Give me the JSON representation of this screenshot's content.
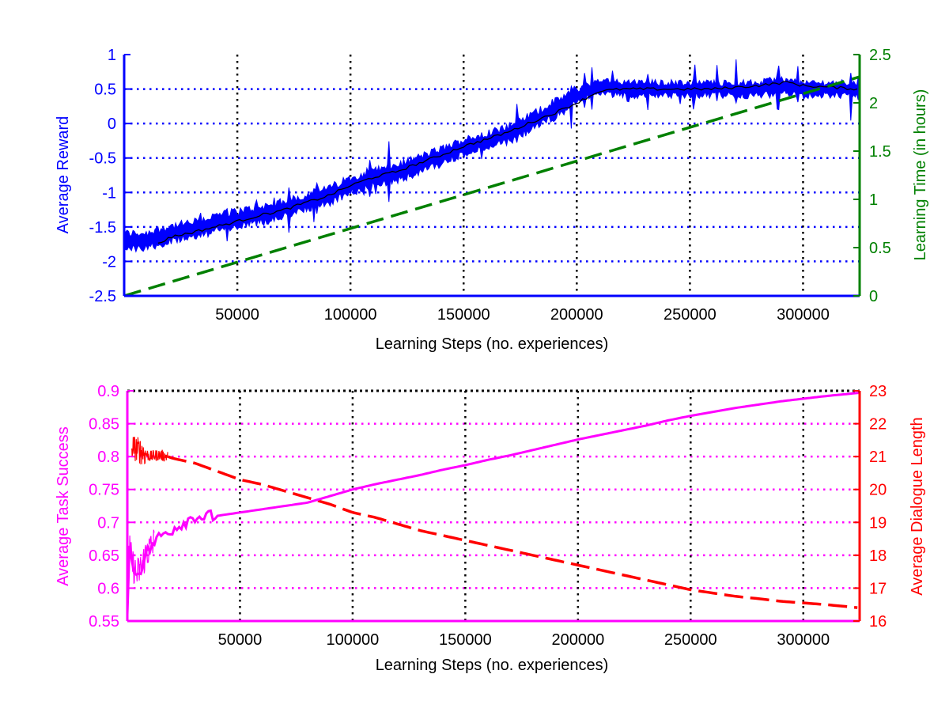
{
  "chart_data": [
    {
      "type": "line",
      "title": "",
      "xlabel": "Learning Steps (no. experiences)",
      "ylabel": "Average Reward",
      "y2label": "Learning Time (in hours)",
      "xlim": [
        0,
        325000
      ],
      "ylim": [
        -2.5,
        1
      ],
      "y2lim": [
        0,
        2.5
      ],
      "xticks": [
        50000,
        100000,
        150000,
        200000,
        250000,
        300000
      ],
      "yticks": [
        -2.5,
        -2,
        -1.5,
        -1,
        -0.5,
        0,
        0.5,
        1
      ],
      "y2ticks": [
        0,
        0.5,
        1,
        1.5,
        2,
        2.5
      ],
      "xtick_labels": [
        "50000",
        "100000",
        "150000",
        "200000",
        "250000",
        "300000"
      ],
      "ytick_labels": [
        "-2.5",
        "-2",
        "-1.5",
        "-1",
        "-0.5",
        "0",
        "0.5",
        "1"
      ],
      "y2tick_labels": [
        "0",
        "0.5",
        "1",
        "1.5",
        "2",
        "2.5"
      ],
      "grid": true,
      "colors": {
        "reward": "#0000ff",
        "mean": "#000000",
        "time": "#008000"
      },
      "series": [
        {
          "axis": "left",
          "style": "noisy-band",
          "x": [
            0,
            10000,
            20000,
            30000,
            40000,
            50000,
            60000,
            70000,
            80000,
            90000,
            100000,
            110000,
            120000,
            130000,
            140000,
            150000,
            160000,
            170000,
            180000,
            190000,
            200000,
            210000,
            220000,
            230000,
            240000,
            250000,
            260000,
            270000,
            280000,
            290000,
            300000,
            310000,
            325000
          ],
          "values": [
            -1.7,
            -1.7,
            -1.6,
            -1.55,
            -1.45,
            -1.38,
            -1.32,
            -1.25,
            -1.15,
            -1.05,
            -0.9,
            -0.78,
            -0.72,
            -0.6,
            -0.48,
            -0.35,
            -0.25,
            -0.15,
            0.02,
            0.2,
            0.4,
            0.55,
            0.5,
            0.5,
            0.5,
            0.5,
            0.5,
            0.5,
            0.5,
            0.55,
            0.5,
            0.5,
            0.5
          ]
        },
        {
          "axis": "left",
          "style": "line",
          "x": [
            15000,
            20000,
            30000,
            40000,
            50000,
            60000,
            70000,
            80000,
            90000,
            100000,
            110000,
            120000,
            130000,
            140000,
            150000,
            160000,
            170000,
            180000,
            190000,
            200000,
            210000,
            220000,
            240000,
            260000,
            280000,
            293000,
            300000,
            310000,
            325000
          ],
          "values": [
            -1.75,
            -1.65,
            -1.58,
            -1.5,
            -1.42,
            -1.33,
            -1.26,
            -1.15,
            -1.05,
            -0.9,
            -0.78,
            -0.7,
            -0.58,
            -0.46,
            -0.33,
            -0.23,
            -0.12,
            0.02,
            0.15,
            0.3,
            0.47,
            0.5,
            0.5,
            0.5,
            0.55,
            0.6,
            0.55,
            0.53,
            0.5
          ]
        },
        {
          "axis": "right",
          "style": "dashed",
          "x": [
            0,
            325000
          ],
          "values": [
            0,
            2.27
          ]
        }
      ]
    },
    {
      "type": "line",
      "title": "",
      "xlabel": "Learning Steps (no. experiences)",
      "ylabel": "Average Task Success",
      "y2label": "Average Dialogue Length",
      "xlim": [
        0,
        325000
      ],
      "ylim": [
        0.55,
        0.9
      ],
      "y2lim": [
        16,
        23
      ],
      "xticks": [
        50000,
        100000,
        150000,
        200000,
        250000,
        300000
      ],
      "yticks": [
        0.55,
        0.6,
        0.65,
        0.7,
        0.75,
        0.8,
        0.85,
        0.9
      ],
      "y2ticks": [
        16,
        17,
        18,
        19,
        20,
        21,
        22,
        23
      ],
      "xtick_labels": [
        "50000",
        "100000",
        "150000",
        "200000",
        "250000",
        "300000"
      ],
      "ytick_labels": [
        "0.55",
        "0.6",
        "0.65",
        "0.7",
        "0.75",
        "0.8",
        "0.85",
        "0.9"
      ],
      "y2tick_labels": [
        "16",
        "17",
        "18",
        "19",
        "20",
        "21",
        "22",
        "23"
      ],
      "grid": true,
      "colors": {
        "success": "#ff00ff",
        "length": "#ff0000"
      },
      "series": [
        {
          "axis": "left",
          "style": "noisy-line",
          "x": [
            0,
            1000,
            2000,
            3000,
            4000,
            6000,
            8000,
            10000,
            12000,
            15000,
            20000,
            25000,
            30000,
            35000,
            40000,
            50000,
            60000,
            70000,
            80000,
            90000,
            100000,
            110000,
            120000,
            130000,
            140000,
            150000,
            160000,
            170000,
            180000,
            190000,
            200000,
            210000,
            220000,
            230000,
            240000,
            250000,
            260000,
            270000,
            280000,
            290000,
            300000,
            310000,
            325000
          ],
          "values": [
            0.56,
            0.66,
            0.64,
            0.63,
            0.62,
            0.63,
            0.65,
            0.66,
            0.67,
            0.68,
            0.69,
            0.7,
            0.71,
            0.708,
            0.71,
            0.715,
            0.72,
            0.725,
            0.73,
            0.74,
            0.75,
            0.758,
            0.765,
            0.772,
            0.78,
            0.787,
            0.795,
            0.802,
            0.81,
            0.818,
            0.826,
            0.833,
            0.84,
            0.847,
            0.855,
            0.862,
            0.868,
            0.874,
            0.879,
            0.884,
            0.888,
            0.892,
            0.897
          ]
        },
        {
          "axis": "right",
          "style": "noisy-dashed",
          "x": [
            2000,
            5000,
            8000,
            10000,
            14000,
            18000,
            20000,
            30000,
            40000,
            50000,
            60000,
            70000,
            80000,
            90000,
            100000,
            110000,
            120000,
            130000,
            140000,
            150000,
            160000,
            170000,
            180000,
            190000,
            200000,
            210000,
            220000,
            230000,
            240000,
            250000,
            260000,
            270000,
            280000,
            290000,
            300000,
            310000,
            325000
          ],
          "values": [
            21.3,
            21.2,
            21.1,
            21.0,
            21.05,
            21.0,
            20.95,
            20.8,
            20.55,
            20.3,
            20.15,
            19.95,
            19.75,
            19.55,
            19.3,
            19.15,
            18.95,
            18.75,
            18.6,
            18.45,
            18.3,
            18.15,
            18.0,
            17.85,
            17.7,
            17.55,
            17.4,
            17.25,
            17.1,
            16.95,
            16.85,
            16.75,
            16.68,
            16.6,
            16.55,
            16.5,
            16.4
          ]
        }
      ]
    }
  ]
}
